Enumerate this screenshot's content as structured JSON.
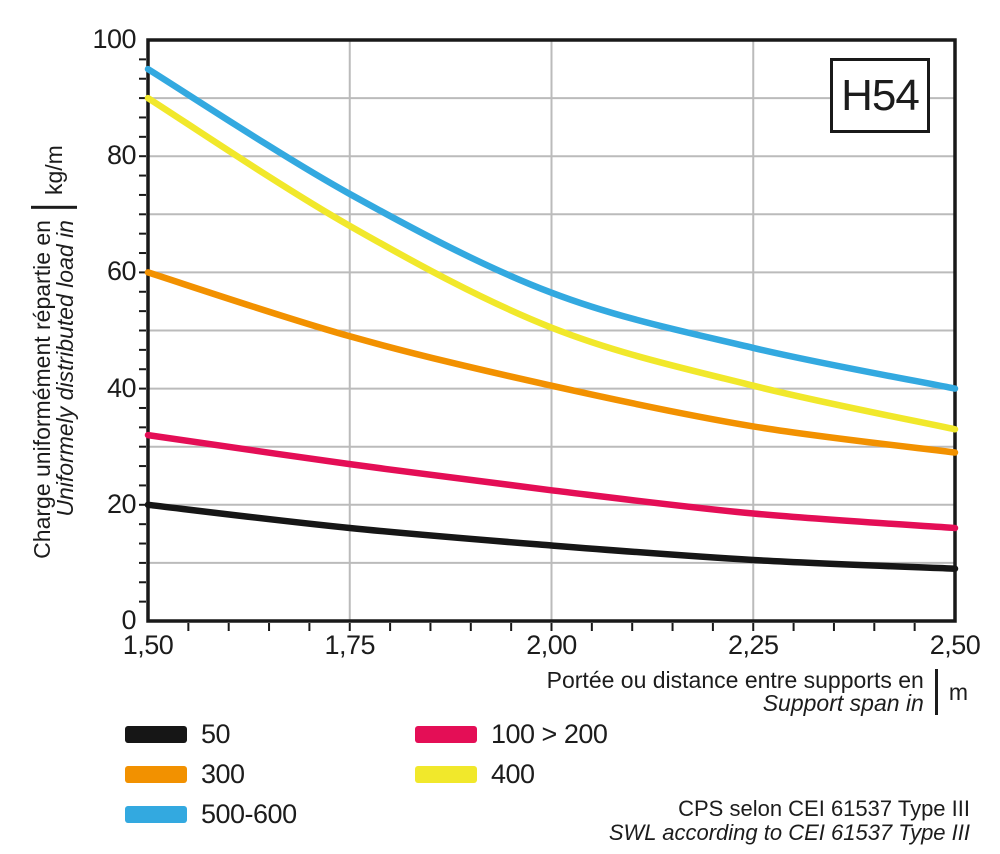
{
  "badge": "H54",
  "y_axis": {
    "title_fr": "Charge uniformément répartie en",
    "title_en": "Uniformely distributed load in",
    "unit": "kg/m",
    "ticks": [
      {
        "label": "100",
        "value": 100
      },
      {
        "label": "80",
        "value": 80
      },
      {
        "label": "60",
        "value": 60
      },
      {
        "label": "40",
        "value": 40
      },
      {
        "label": "20",
        "value": 20
      },
      {
        "label": "0",
        "value": 0
      }
    ]
  },
  "x_axis": {
    "title_fr": "Portée ou distance entre supports en",
    "title_en": "Support span in",
    "unit": "m",
    "ticks": [
      {
        "label": "1,50",
        "value": 1.5
      },
      {
        "label": "1,75",
        "value": 1.75
      },
      {
        "label": "2,00",
        "value": 2.0
      },
      {
        "label": "2,25",
        "value": 2.25
      },
      {
        "label": "2,50",
        "value": 2.5
      }
    ]
  },
  "legend": {
    "col1": [
      {
        "label": "50",
        "color": "#161616"
      },
      {
        "label": "300",
        "color": "#F29100"
      },
      {
        "label": "500-600",
        "color": "#33A9E0"
      }
    ],
    "col2": [
      {
        "label": "100 > 200",
        "color": "#E40E56"
      },
      {
        "label": "400",
        "color": "#F1E82B"
      }
    ]
  },
  "footer": {
    "line1": "CPS selon CEI 61537 Type III",
    "line2": "SWL according to CEI 61537 Type III"
  },
  "chart_data": {
    "type": "line",
    "x": [
      1.5,
      1.75,
      2.0,
      2.25,
      2.5
    ],
    "series": [
      {
        "name": "50",
        "color": "#161616",
        "values": [
          20,
          16,
          13,
          10.5,
          9
        ]
      },
      {
        "name": "100 > 200",
        "color": "#E40E56",
        "values": [
          32,
          27,
          22.5,
          18.5,
          16
        ]
      },
      {
        "name": "300",
        "color": "#F29100",
        "values": [
          60,
          49,
          40.5,
          33.5,
          29
        ]
      },
      {
        "name": "400",
        "color": "#F1E82B",
        "values": [
          90,
          68,
          50.5,
          40.5,
          33
        ]
      },
      {
        "name": "500-600",
        "color": "#33A9E0",
        "values": [
          95,
          73.5,
          56.5,
          47,
          40
        ]
      }
    ],
    "title": "",
    "xlabel": "Portée ou distance entre supports en / Support span in (m)",
    "ylabel": "Charge uniformément répartie en / Uniformely distributed load in (kg/m)",
    "xlim": [
      1.5,
      2.5
    ],
    "ylim": [
      0,
      100
    ],
    "grid": true,
    "grid_color": "#bbbbbb",
    "axis_color": "#191919",
    "legend_position": "bottom"
  }
}
